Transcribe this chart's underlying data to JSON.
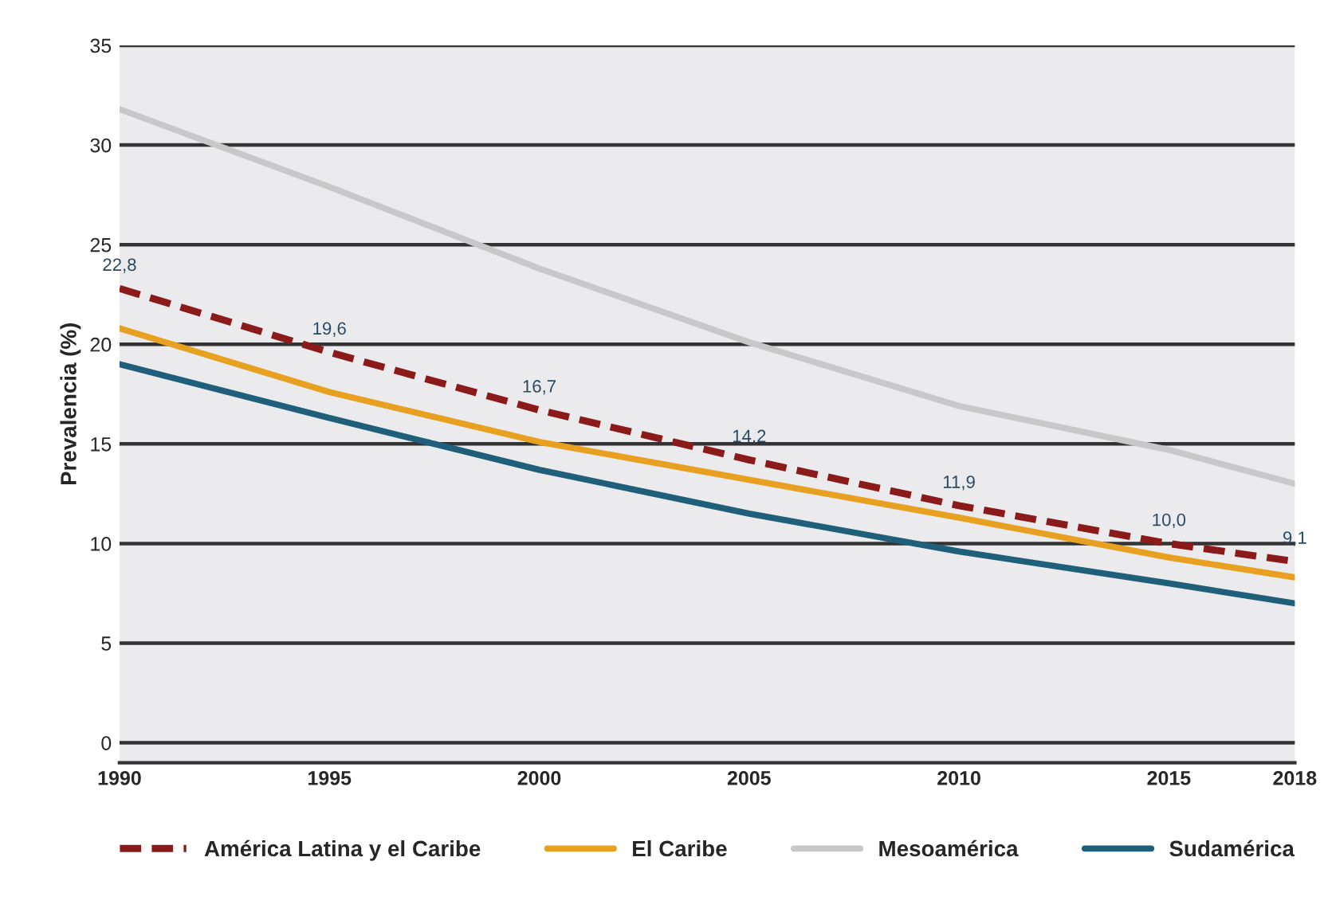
{
  "chart_data": {
    "type": "line",
    "ylabel": "Prevalencia (%)",
    "x": [
      1990,
      1995,
      2000,
      2005,
      2010,
      2015,
      2018
    ],
    "xlim": [
      1990,
      2018
    ],
    "xticks": [
      1990,
      1995,
      2000,
      2005,
      2010,
      2015,
      2018
    ],
    "ylim": [
      -1,
      35
    ],
    "yticks": [
      0,
      5,
      10,
      15,
      20,
      25,
      30,
      35
    ],
    "grid": "y",
    "legend": "bottom",
    "marker": "none",
    "series": [
      {
        "name": "América Latina y el Caribe",
        "color": "#8b1a1a",
        "line_style": "dashed",
        "values": [
          22.8,
          19.6,
          16.7,
          14.2,
          11.9,
          10.0,
          9.1
        ],
        "value_labels": [
          "22,8",
          "19,6",
          "16,7",
          "14,2",
          "11,9",
          "10,0",
          "9,1"
        ]
      },
      {
        "name": "El Caribe",
        "color": "#e8a020",
        "line_style": "solid",
        "values": [
          20.8,
          17.6,
          15.1,
          13.2,
          11.3,
          9.3,
          8.3
        ]
      },
      {
        "name": "Mesoamérica",
        "color": "#c8c8c8",
        "line_style": "solid",
        "values": [
          31.8,
          27.9,
          23.8,
          20.1,
          16.9,
          14.7,
          13.0
        ]
      },
      {
        "name": "Sudamérica",
        "color": "#1f5f7a",
        "line_style": "solid",
        "values": [
          19.0,
          16.3,
          13.7,
          11.5,
          9.6,
          8.0,
          7.0
        ]
      }
    ]
  }
}
